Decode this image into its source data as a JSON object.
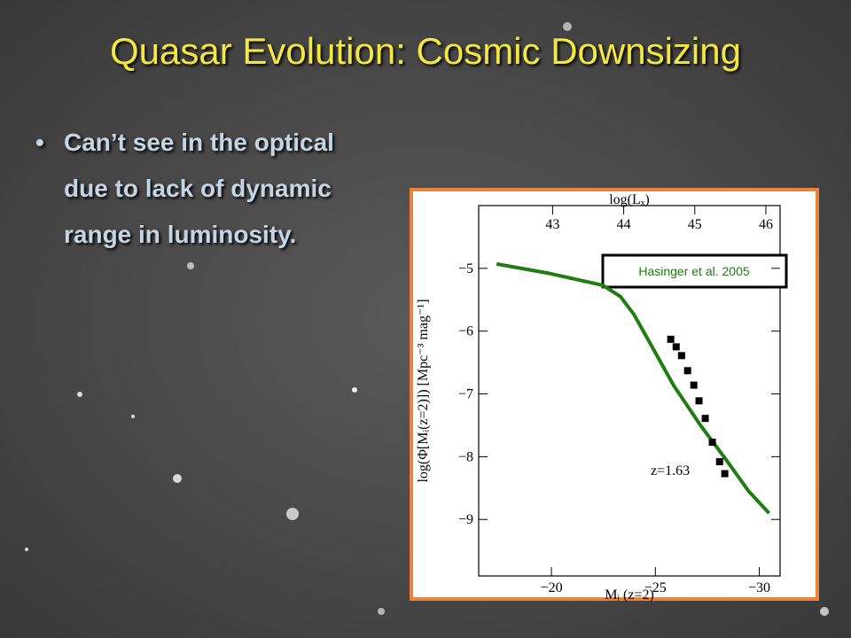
{
  "slide": {
    "title": "Quasar Evolution: Cosmic Downsizing",
    "bullets": [
      "Can’t see in the optical due to lack of dynamic range in luminosity."
    ]
  },
  "chart_data": {
    "type": "scatter",
    "xlabel": "Mᵢ (z=2)",
    "ylabel": "log(Φ[Mᵢ(z=2)]) [Mpc⁻³ mag⁻¹]",
    "x2label": "log(Lₓ)",
    "annotation": "z=1.63",
    "label_box": "Hasinger et al. 2005",
    "xlim": [
      -16.5,
      -31
    ],
    "xticks": [
      {
        "value": -20,
        "label": "−20"
      },
      {
        "value": -25,
        "label": "−25"
      },
      {
        "value": -30,
        "label": "−30"
      }
    ],
    "x2lim": [
      41.96,
      46.2
    ],
    "x2ticks": [
      43,
      44,
      45,
      46
    ],
    "ylim": [
      -9.9,
      -4
    ],
    "yticks": [
      {
        "value": -5,
        "label": "−5"
      },
      {
        "value": -6,
        "label": "−6"
      },
      {
        "value": -7,
        "label": "−7"
      },
      {
        "value": -8,
        "label": "−8"
      },
      {
        "value": -9,
        "label": "−9"
      }
    ],
    "series": [
      {
        "style": "line",
        "color": "#1f7d12",
        "x": [
          -17.36,
          -19.9,
          -22.47,
          -23.32,
          -23.96,
          -24.81,
          -25.87,
          -27.15,
          -28.43,
          -29.49,
          -30.47
        ],
        "values": [
          -4.93,
          -5.08,
          -5.27,
          -5.45,
          -5.73,
          -6.23,
          -6.86,
          -7.49,
          -8.06,
          -8.55,
          -8.9
        ]
      },
      {
        "style": "markers",
        "color": "#000000",
        "x": [
          -25.74,
          -26.0,
          -26.26,
          -26.55,
          -26.85,
          -27.1,
          -27.4,
          -27.74,
          -28.09,
          -28.34
        ],
        "values": [
          -6.13,
          -6.25,
          -6.39,
          -6.63,
          -6.86,
          -7.11,
          -7.39,
          -7.77,
          -8.08,
          -8.27
        ]
      }
    ]
  }
}
